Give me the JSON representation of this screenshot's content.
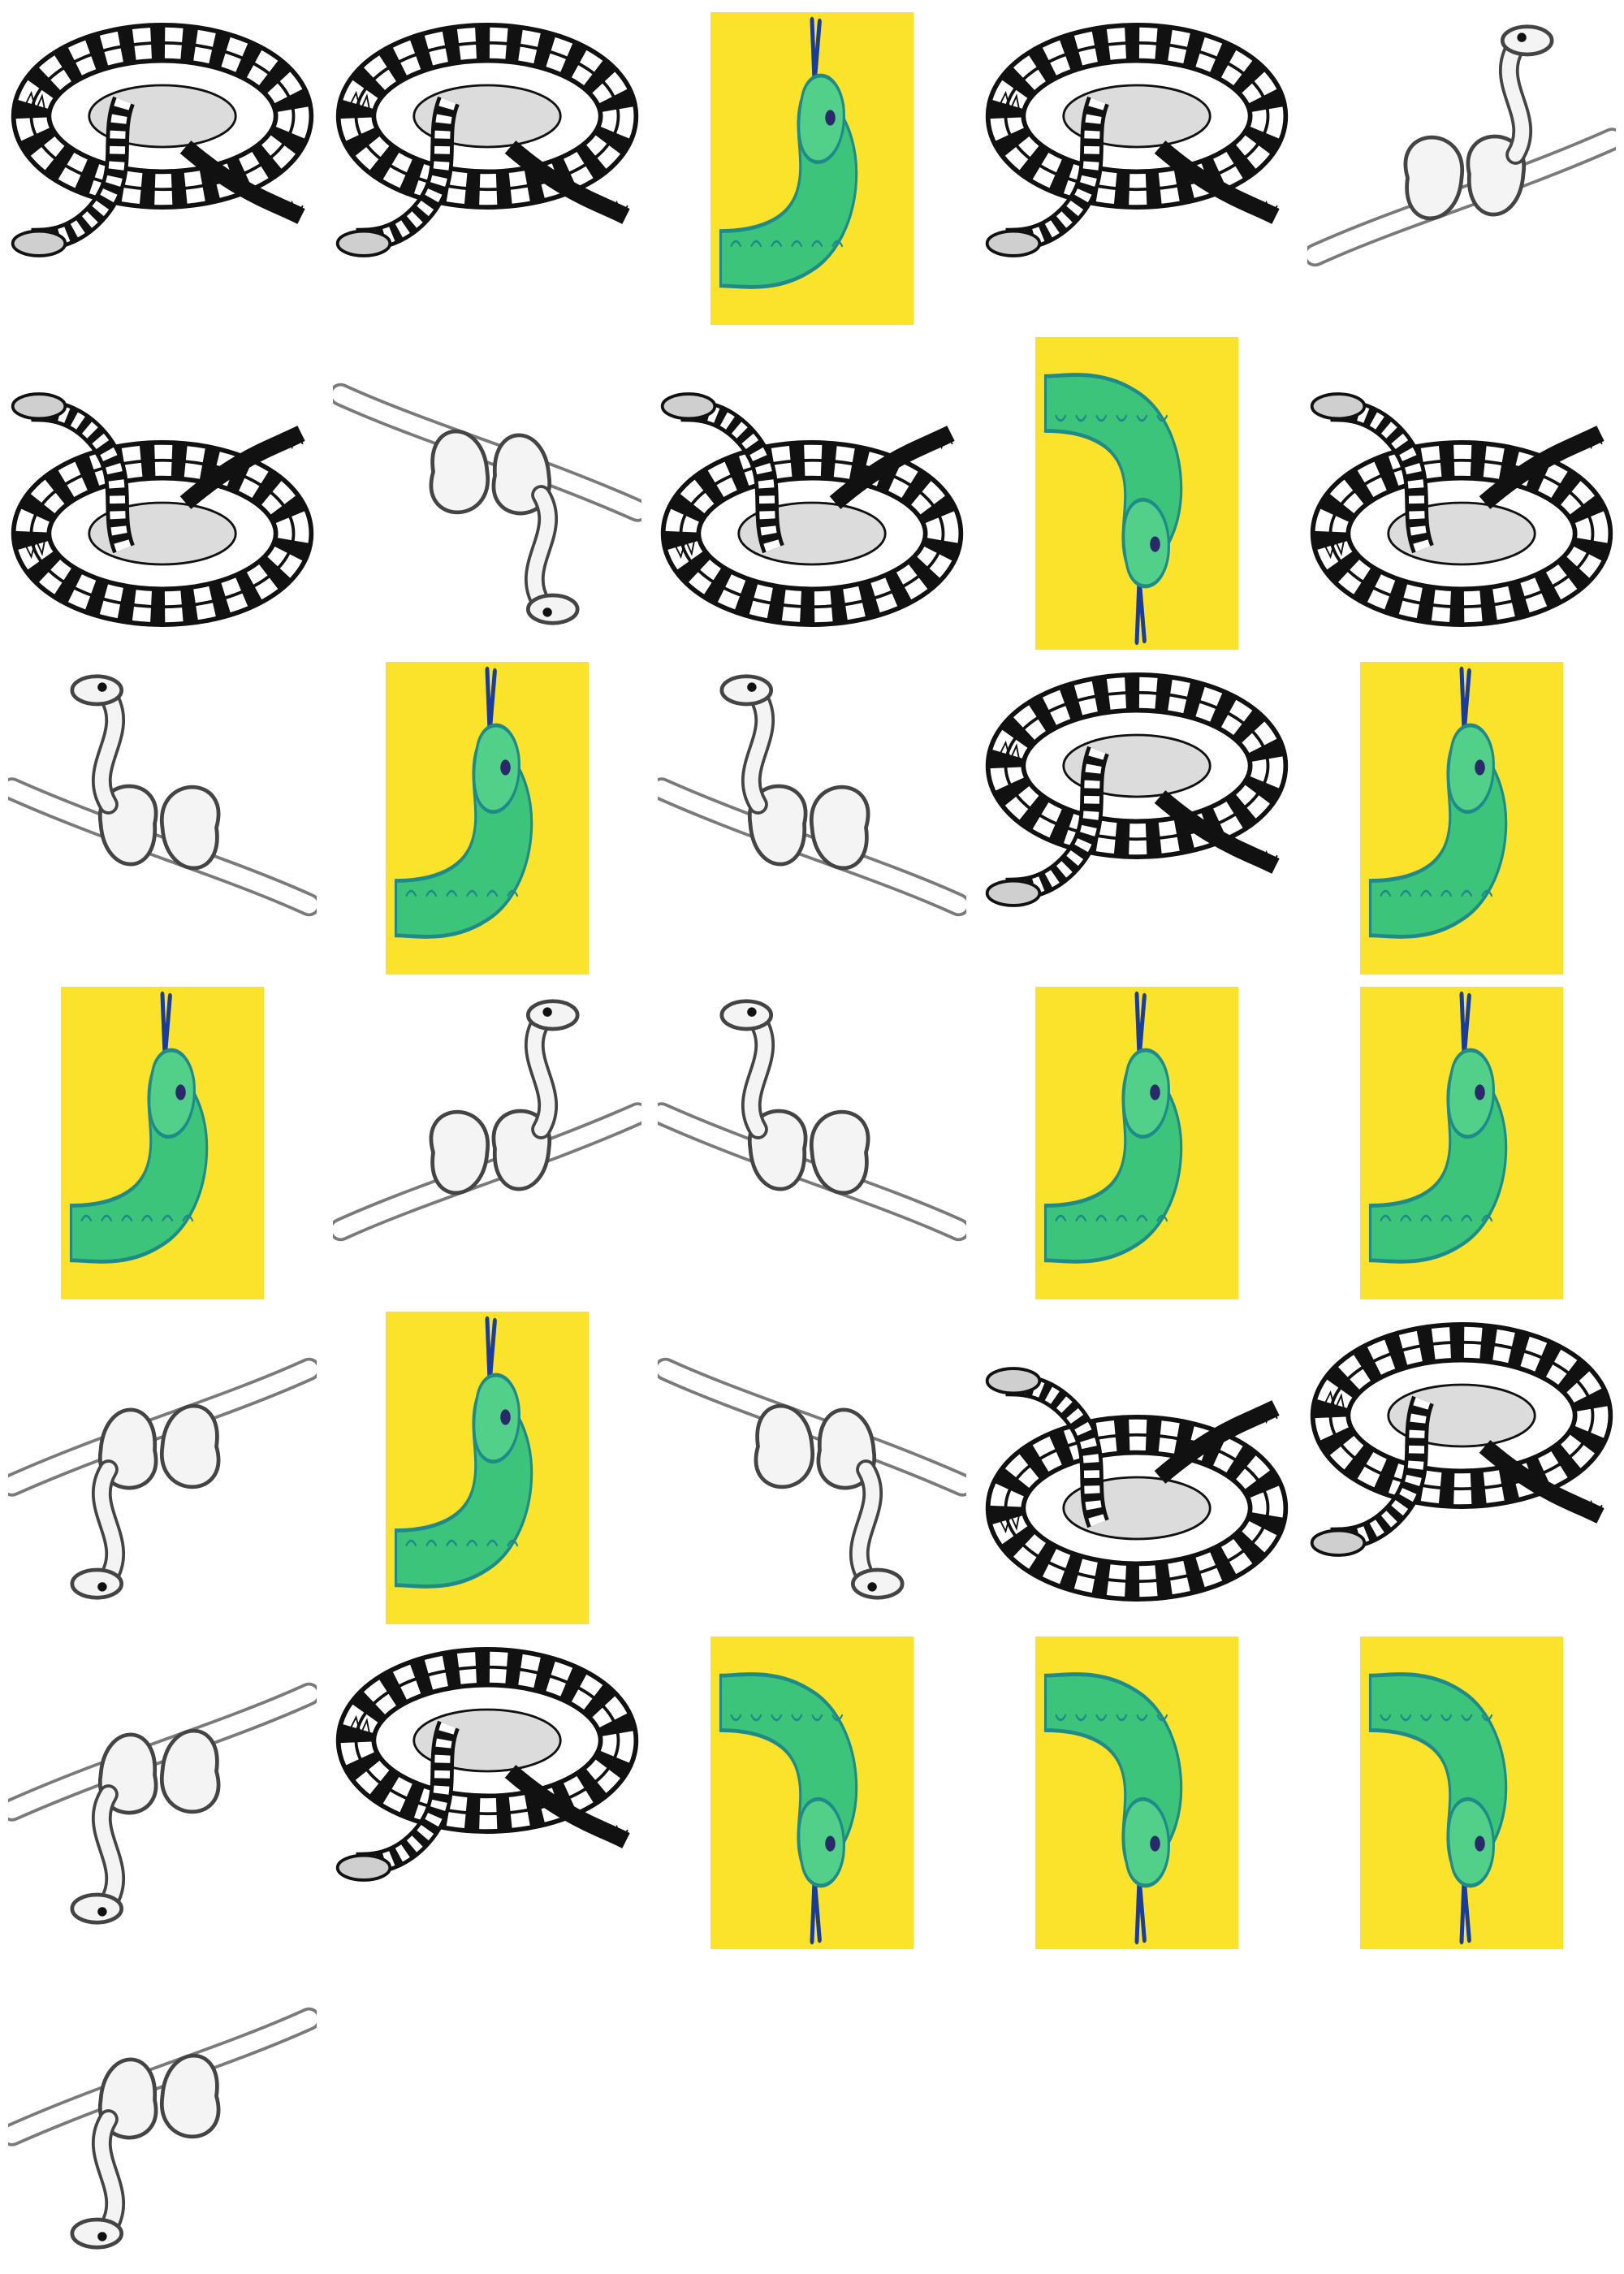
{
  "grid": {
    "tiles": [
      {
        "kind": "coiled-viper",
        "flip": ""
      },
      {
        "kind": "coiled-viper",
        "flip": ""
      },
      {
        "kind": "green-head",
        "flip": ""
      },
      {
        "kind": "coiled-viper",
        "flip": ""
      },
      {
        "kind": "branch-snake",
        "flip": ""
      },
      {
        "kind": "coiled-viper",
        "flip": "v"
      },
      {
        "kind": "branch-snake",
        "flip": "v"
      },
      {
        "kind": "coiled-viper",
        "flip": "v"
      },
      {
        "kind": "green-head",
        "flip": "v"
      },
      {
        "kind": "coiled-viper",
        "flip": "v"
      },
      {
        "kind": "branch-snake",
        "flip": "h"
      },
      {
        "kind": "green-head",
        "flip": ""
      },
      {
        "kind": "branch-snake",
        "flip": "h"
      },
      {
        "kind": "coiled-viper",
        "flip": ""
      },
      {
        "kind": "green-head",
        "flip": ""
      },
      {
        "kind": "green-head",
        "flip": ""
      },
      {
        "kind": "branch-snake",
        "flip": ""
      },
      {
        "kind": "branch-snake",
        "flip": "h"
      },
      {
        "kind": "green-head",
        "flip": ""
      },
      {
        "kind": "green-head",
        "flip": ""
      },
      {
        "kind": "branch-snake",
        "flip": "vh"
      },
      {
        "kind": "green-head",
        "flip": ""
      },
      {
        "kind": "branch-snake",
        "flip": "v"
      },
      {
        "kind": "coiled-viper",
        "flip": "v"
      },
      {
        "kind": "coiled-viper",
        "flip": ""
      },
      {
        "kind": "branch-snake",
        "flip": "vh"
      },
      {
        "kind": "coiled-viper",
        "flip": ""
      },
      {
        "kind": "green-head",
        "flip": "v"
      },
      {
        "kind": "green-head",
        "flip": "v"
      },
      {
        "kind": "green-head",
        "flip": "v"
      },
      {
        "kind": "branch-snake",
        "flip": "vh"
      }
    ]
  },
  "colors": {
    "yellow": "#fbe32c",
    "green": "#3cc47a",
    "teal": "#1f8a8a",
    "ink": "#111111",
    "pencil": "#7a7a7a"
  }
}
